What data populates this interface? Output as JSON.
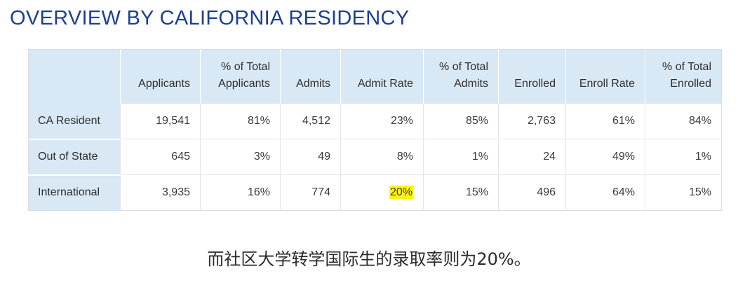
{
  "title": "OVERVIEW BY CALIFORNIA RESIDENCY",
  "table": {
    "headers": [
      "",
      "Applicants",
      "% of Total Applicants",
      "Admits",
      "Admit Rate",
      "% of Total Admits",
      "Enrolled",
      "Enroll Rate",
      "% of Total Enrolled"
    ],
    "rows": [
      {
        "label": "CA Resident",
        "cells": [
          "19,541",
          "81%",
          "4,512",
          "23%",
          "85%",
          "2,763",
          "61%",
          "84%"
        ]
      },
      {
        "label": "Out of State",
        "cells": [
          "645",
          "3%",
          "49",
          "8%",
          "1%",
          "24",
          "49%",
          "1%"
        ]
      },
      {
        "label": "International",
        "cells": [
          "3,935",
          "16%",
          "774",
          "20%",
          "15%",
          "496",
          "64%",
          "15%"
        ]
      }
    ]
  },
  "caption": "而社区大学转学国际生的录取率则为20%。",
  "colors": {
    "title": "#1c3f94",
    "header_bg": "#d8e8f5",
    "highlight": "#fbf21a"
  }
}
